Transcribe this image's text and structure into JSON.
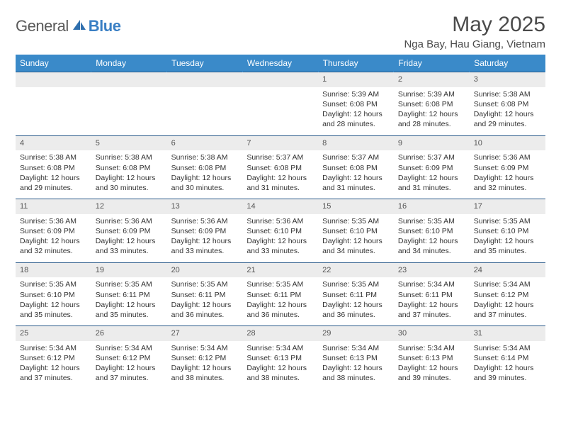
{
  "brand": {
    "text_general": "General",
    "text_blue": "Blue",
    "icon_color": "#2f6fae"
  },
  "title": "May 2025",
  "location": "Nga Bay, Hau Giang, Vietnam",
  "colors": {
    "header_bg": "#3a8ac9",
    "header_text": "#ffffff",
    "row_border": "#2a5a8a",
    "daynum_bg": "#ececec",
    "text": "#333333"
  },
  "day_headers": [
    "Sunday",
    "Monday",
    "Tuesday",
    "Wednesday",
    "Thursday",
    "Friday",
    "Saturday"
  ],
  "weeks": [
    [
      null,
      null,
      null,
      null,
      {
        "n": "1",
        "sr": "5:39 AM",
        "ss": "6:08 PM",
        "dl": "12 hours and 28 minutes."
      },
      {
        "n": "2",
        "sr": "5:39 AM",
        "ss": "6:08 PM",
        "dl": "12 hours and 28 minutes."
      },
      {
        "n": "3",
        "sr": "5:38 AM",
        "ss": "6:08 PM",
        "dl": "12 hours and 29 minutes."
      }
    ],
    [
      {
        "n": "4",
        "sr": "5:38 AM",
        "ss": "6:08 PM",
        "dl": "12 hours and 29 minutes."
      },
      {
        "n": "5",
        "sr": "5:38 AM",
        "ss": "6:08 PM",
        "dl": "12 hours and 30 minutes."
      },
      {
        "n": "6",
        "sr": "5:38 AM",
        "ss": "6:08 PM",
        "dl": "12 hours and 30 minutes."
      },
      {
        "n": "7",
        "sr": "5:37 AM",
        "ss": "6:08 PM",
        "dl": "12 hours and 31 minutes."
      },
      {
        "n": "8",
        "sr": "5:37 AM",
        "ss": "6:08 PM",
        "dl": "12 hours and 31 minutes."
      },
      {
        "n": "9",
        "sr": "5:37 AM",
        "ss": "6:09 PM",
        "dl": "12 hours and 31 minutes."
      },
      {
        "n": "10",
        "sr": "5:36 AM",
        "ss": "6:09 PM",
        "dl": "12 hours and 32 minutes."
      }
    ],
    [
      {
        "n": "11",
        "sr": "5:36 AM",
        "ss": "6:09 PM",
        "dl": "12 hours and 32 minutes."
      },
      {
        "n": "12",
        "sr": "5:36 AM",
        "ss": "6:09 PM",
        "dl": "12 hours and 33 minutes."
      },
      {
        "n": "13",
        "sr": "5:36 AM",
        "ss": "6:09 PM",
        "dl": "12 hours and 33 minutes."
      },
      {
        "n": "14",
        "sr": "5:36 AM",
        "ss": "6:10 PM",
        "dl": "12 hours and 33 minutes."
      },
      {
        "n": "15",
        "sr": "5:35 AM",
        "ss": "6:10 PM",
        "dl": "12 hours and 34 minutes."
      },
      {
        "n": "16",
        "sr": "5:35 AM",
        "ss": "6:10 PM",
        "dl": "12 hours and 34 minutes."
      },
      {
        "n": "17",
        "sr": "5:35 AM",
        "ss": "6:10 PM",
        "dl": "12 hours and 35 minutes."
      }
    ],
    [
      {
        "n": "18",
        "sr": "5:35 AM",
        "ss": "6:10 PM",
        "dl": "12 hours and 35 minutes."
      },
      {
        "n": "19",
        "sr": "5:35 AM",
        "ss": "6:11 PM",
        "dl": "12 hours and 35 minutes."
      },
      {
        "n": "20",
        "sr": "5:35 AM",
        "ss": "6:11 PM",
        "dl": "12 hours and 36 minutes."
      },
      {
        "n": "21",
        "sr": "5:35 AM",
        "ss": "6:11 PM",
        "dl": "12 hours and 36 minutes."
      },
      {
        "n": "22",
        "sr": "5:35 AM",
        "ss": "6:11 PM",
        "dl": "12 hours and 36 minutes."
      },
      {
        "n": "23",
        "sr": "5:34 AM",
        "ss": "6:11 PM",
        "dl": "12 hours and 37 minutes."
      },
      {
        "n": "24",
        "sr": "5:34 AM",
        "ss": "6:12 PM",
        "dl": "12 hours and 37 minutes."
      }
    ],
    [
      {
        "n": "25",
        "sr": "5:34 AM",
        "ss": "6:12 PM",
        "dl": "12 hours and 37 minutes."
      },
      {
        "n": "26",
        "sr": "5:34 AM",
        "ss": "6:12 PM",
        "dl": "12 hours and 37 minutes."
      },
      {
        "n": "27",
        "sr": "5:34 AM",
        "ss": "6:12 PM",
        "dl": "12 hours and 38 minutes."
      },
      {
        "n": "28",
        "sr": "5:34 AM",
        "ss": "6:13 PM",
        "dl": "12 hours and 38 minutes."
      },
      {
        "n": "29",
        "sr": "5:34 AM",
        "ss": "6:13 PM",
        "dl": "12 hours and 38 minutes."
      },
      {
        "n": "30",
        "sr": "5:34 AM",
        "ss": "6:13 PM",
        "dl": "12 hours and 39 minutes."
      },
      {
        "n": "31",
        "sr": "5:34 AM",
        "ss": "6:14 PM",
        "dl": "12 hours and 39 minutes."
      }
    ]
  ],
  "labels": {
    "sunrise": "Sunrise: ",
    "sunset": "Sunset: ",
    "daylight": "Daylight: "
  }
}
